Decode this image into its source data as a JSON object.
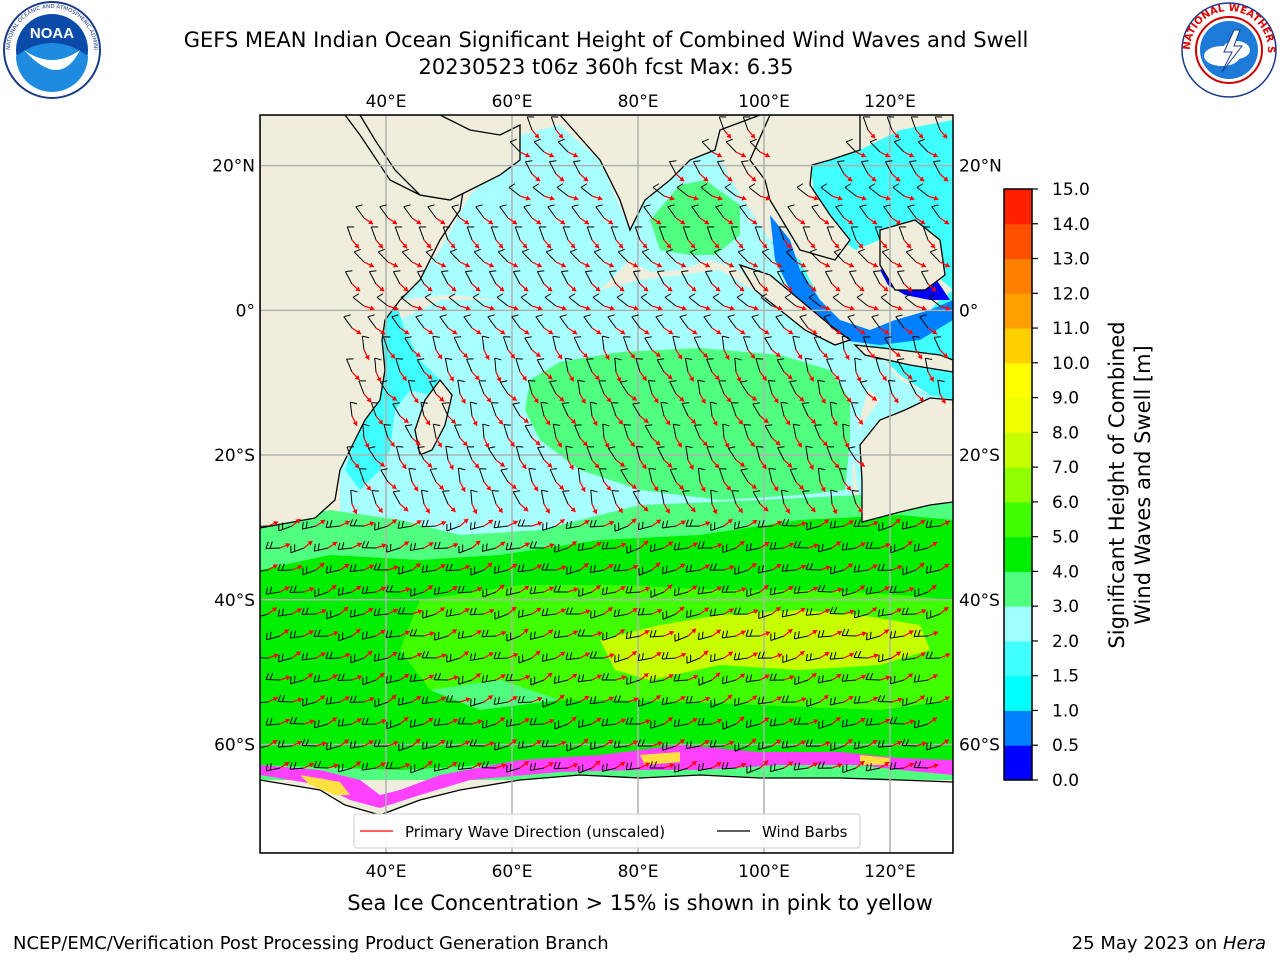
{
  "header": {
    "title_line1": "GEFS MEAN Indian Ocean Significant Height of Combined Wind Waves and Swell",
    "title_line2": "20230523 t06z 360h fcst   Max: 6.35"
  },
  "logos": {
    "left": "NOAA",
    "left_ring_text": "NATIONAL OCEANIC AND ATMOSPHERIC ADMINISTRATION · U.S. DEPARTMENT OF COMMERCE",
    "right_ring_text": "NATIONAL WEATHER SERVICE"
  },
  "map": {
    "lon_range": [
      20,
      130
    ],
    "lat_range": [
      -75,
      27
    ],
    "lon_ticks": [
      40,
      60,
      80,
      100,
      120
    ],
    "lon_tick_labels": [
      "40°E",
      "60°E",
      "80°E",
      "100°E",
      "120°E"
    ],
    "lat_ticks": [
      20,
      0,
      -20,
      -40,
      -60
    ],
    "lat_tick_labels": [
      "20°N",
      "0°",
      "20°S",
      "40°S",
      "60°S"
    ],
    "grid": true,
    "land_color": "#efeedd",
    "ice_colors": [
      "#ff40ff",
      "#ff80c0",
      "#ffb060",
      "#ffe040"
    ]
  },
  "legend": {
    "placement": "bottom-center",
    "items": [
      {
        "label": "Primary Wave Direction (unscaled)",
        "color": "#ff0000"
      },
      {
        "label": "Wind Barbs",
        "color": "#000000"
      }
    ]
  },
  "colorbar": {
    "label_line1": "Significant Height of Combined",
    "label_line2": "Wind Waves and Swell [m]",
    "levels": [
      0.0,
      0.5,
      1.0,
      1.5,
      2.0,
      3.0,
      4.0,
      5.0,
      6.0,
      7.0,
      8.0,
      9.0,
      10.0,
      11.0,
      12.0,
      13.0,
      14.0,
      15.0
    ],
    "tick_labels": [
      "0.0",
      "0.5",
      "1.0",
      "1.5",
      "2.0",
      "3.0",
      "4.0",
      "5.0",
      "6.0",
      "7.0",
      "8.0",
      "9.0",
      "10.0",
      "11.0",
      "12.0",
      "13.0",
      "14.0",
      "15.0"
    ],
    "colors": [
      "#0000ff",
      "#0080ff",
      "#00ffff",
      "#40ffff",
      "#a0ffff",
      "#50ff80",
      "#00ee00",
      "#40ff00",
      "#90ff00",
      "#c8ff00",
      "#f0ff00",
      "#ffff00",
      "#ffd000",
      "#ffa000",
      "#ff8000",
      "#ff5000",
      "#ff2000"
    ]
  },
  "footer": {
    "note": "Sea Ice Concentration > 15% is shown in pink to yellow",
    "credit": "NCEP/EMC/Verification Post Processing Product Generation Branch",
    "date_prefix": "25 May 2023 on ",
    "date_host": "Hera"
  }
}
